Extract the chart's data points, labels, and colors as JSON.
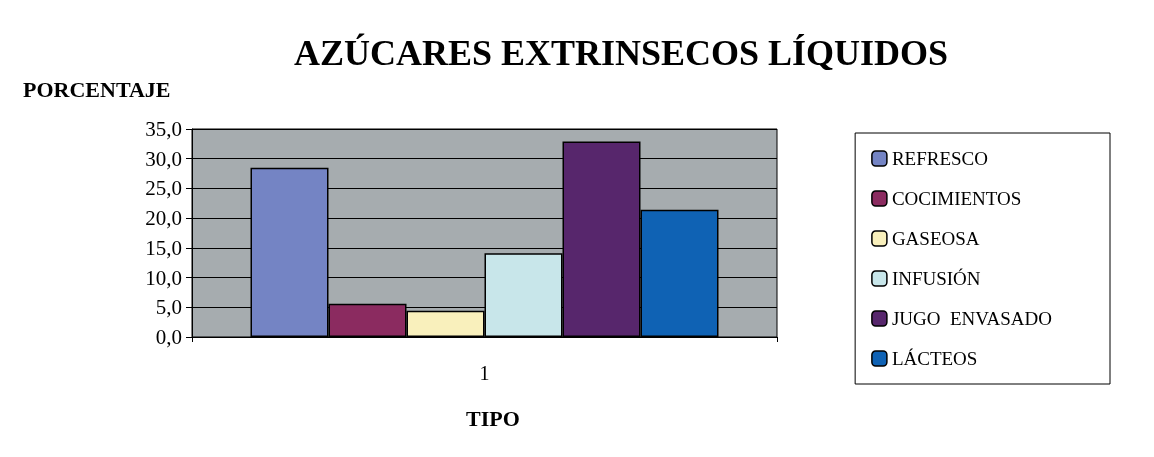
{
  "chart_data": {
    "type": "bar",
    "title": "AZÚCARES EXTRINSECOS LÍQUIDOS",
    "ylabel": "PORCENTAJE",
    "xlabel": "TIPO",
    "categories": [
      "1"
    ],
    "series": [
      {
        "name": "REFRESCO",
        "color": "#7484c4",
        "values": [
          28.5
        ]
      },
      {
        "name": "COCIMIENTOS",
        "color": "#8b2b60",
        "values": [
          5.6
        ]
      },
      {
        "name": "GASEOSA",
        "color": "#f9f0bc",
        "values": [
          4.4
        ]
      },
      {
        "name": "INFUSIÓN",
        "color": "#c8e6ea",
        "values": [
          14.1
        ]
      },
      {
        "name": "JUGO  ENVASADO",
        "color": "#57266c",
        "values": [
          32.9
        ]
      },
      {
        "name": "LÁCTEOS",
        "color": "#0f62b4",
        "values": [
          21.4
        ]
      }
    ],
    "ylim": [
      0,
      35
    ],
    "yticks": [
      {
        "value": 0,
        "label": "0,0"
      },
      {
        "value": 5,
        "label": "5,0"
      },
      {
        "value": 10,
        "label": "10,0"
      },
      {
        "value": 15,
        "label": "15,0"
      },
      {
        "value": 20,
        "label": "20,0"
      },
      {
        "value": 25,
        "label": "25,0"
      },
      {
        "value": 30,
        "label": "30,0"
      },
      {
        "value": 35,
        "label": "35,0"
      }
    ],
    "grid": "y",
    "legend": "right"
  }
}
